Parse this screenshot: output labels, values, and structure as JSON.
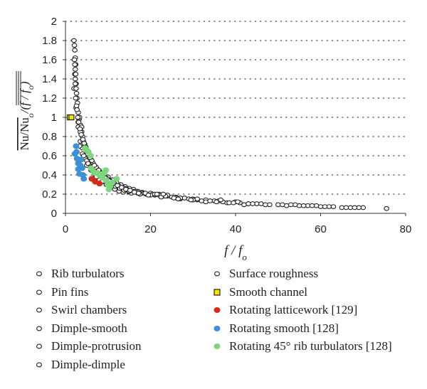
{
  "chart_data": {
    "type": "scatter",
    "xlabel": "f / fo",
    "ylabel": "Nu/Nuo / (f / fo)",
    "xlim": [
      0,
      80
    ],
    "ylim": [
      0,
      2
    ],
    "xticks": [
      "0",
      "20",
      "40",
      "60",
      "80"
    ],
    "yticks": [
      "0",
      "0.2",
      "0.4",
      "0.6",
      "0.8",
      "1",
      "1.2",
      "1.4",
      "1.6",
      "1.8",
      "2"
    ],
    "grid": "dotted horizontal",
    "legend_position": "bottom",
    "series": [
      {
        "name": "Rib turbulators",
        "marker": "open-circle",
        "color": "#222222",
        "points": [
          [
            2,
            1.8
          ],
          [
            2.1,
            1.75
          ],
          [
            2.2,
            1.7
          ],
          [
            2.3,
            1.62
          ],
          [
            2.4,
            1.55
          ],
          [
            2.2,
            1.45
          ],
          [
            2.3,
            1.4
          ],
          [
            2.5,
            1.35
          ],
          [
            2.6,
            1.25
          ],
          [
            2.8,
            1.15
          ],
          [
            3,
            1.05
          ],
          [
            3.2,
            0.98
          ],
          [
            3.5,
            0.92
          ],
          [
            3.8,
            0.85
          ],
          [
            4,
            0.8
          ],
          [
            4.5,
            0.72
          ],
          [
            5,
            0.66
          ],
          [
            5.5,
            0.6
          ],
          [
            6,
            0.56
          ],
          [
            6.5,
            0.52
          ],
          [
            7,
            0.49
          ],
          [
            7.5,
            0.46
          ],
          [
            8,
            0.44
          ],
          [
            9,
            0.41
          ],
          [
            10,
            0.38
          ],
          [
            11,
            0.35
          ],
          [
            12,
            0.32
          ],
          [
            13,
            0.3
          ],
          [
            14,
            0.28
          ],
          [
            15,
            0.26
          ],
          [
            16,
            0.25
          ],
          [
            17,
            0.23
          ],
          [
            18,
            0.22
          ],
          [
            20,
            0.21
          ],
          [
            22,
            0.2
          ],
          [
            24,
            0.18
          ],
          [
            26,
            0.17
          ],
          [
            28,
            0.16
          ],
          [
            30,
            0.15
          ],
          [
            33,
            0.14
          ],
          [
            36,
            0.13
          ],
          [
            40,
            0.12
          ],
          [
            45,
            0.1
          ],
          [
            50,
            0.09
          ],
          [
            55,
            0.08
          ],
          [
            60,
            0.07
          ],
          [
            65,
            0.06
          ],
          [
            70,
            0.06
          ],
          [
            75.5,
            0.05
          ]
        ]
      },
      {
        "name": "Pin fins",
        "marker": "open-circle",
        "color": "#222222",
        "points": [
          [
            3,
            0.9
          ],
          [
            3.5,
            0.75
          ],
          [
            4,
            0.68
          ],
          [
            5,
            0.55
          ],
          [
            6,
            0.48
          ],
          [
            7,
            0.42
          ],
          [
            8,
            0.38
          ],
          [
            9,
            0.35
          ],
          [
            10,
            0.33
          ],
          [
            11,
            0.3
          ],
          [
            12,
            0.28
          ],
          [
            13,
            0.27
          ],
          [
            14,
            0.26
          ],
          [
            15,
            0.24
          ],
          [
            16,
            0.23
          ],
          [
            18,
            0.21
          ],
          [
            19,
            0.2
          ],
          [
            21,
            0.19
          ],
          [
            23,
            0.18
          ],
          [
            25,
            0.17
          ],
          [
            27,
            0.15
          ],
          [
            32,
            0.13
          ],
          [
            38,
            0.11
          ],
          [
            43,
            0.1
          ],
          [
            48,
            0.09
          ],
          [
            52,
            0.08
          ],
          [
            57,
            0.08
          ],
          [
            62,
            0.07
          ],
          [
            67,
            0.06
          ],
          [
            69,
            0.06
          ]
        ]
      },
      {
        "name": "Swirl chambers",
        "marker": "open-circle",
        "color": "#222222",
        "points": [
          [
            4,
            0.62
          ],
          [
            5,
            0.5
          ],
          [
            6,
            0.45
          ],
          [
            7,
            0.4
          ],
          [
            8,
            0.35
          ],
          [
            9,
            0.33
          ],
          [
            10,
            0.3
          ],
          [
            11,
            0.29
          ],
          [
            12,
            0.26
          ],
          [
            13,
            0.25
          ],
          [
            14,
            0.24
          ],
          [
            15,
            0.22
          ],
          [
            17,
            0.21
          ],
          [
            19,
            0.2
          ],
          [
            22,
            0.19
          ],
          [
            24,
            0.19
          ],
          [
            28,
            0.16
          ],
          [
            31,
            0.14
          ],
          [
            35,
            0.13
          ],
          [
            41,
            0.11
          ],
          [
            46,
            0.1
          ],
          [
            54,
            0.09
          ],
          [
            59,
            0.08
          ]
        ]
      },
      {
        "name": "Dimple-smooth",
        "marker": "open-circle",
        "color": "#222222",
        "points": [
          [
            2,
            1.3
          ],
          [
            2.5,
            1.1
          ],
          [
            3,
            0.95
          ],
          [
            3.5,
            0.85
          ],
          [
            4.2,
            0.75
          ],
          [
            5.2,
            0.62
          ],
          [
            6.2,
            0.55
          ],
          [
            7.2,
            0.48
          ],
          [
            8.3,
            0.42
          ],
          [
            9.5,
            0.37
          ],
          [
            10.5,
            0.34
          ],
          [
            11.5,
            0.31
          ],
          [
            12.5,
            0.29
          ],
          [
            13.5,
            0.27
          ],
          [
            14.5,
            0.25
          ],
          [
            16.5,
            0.23
          ],
          [
            18.5,
            0.21
          ],
          [
            20.5,
            0.2
          ],
          [
            26,
            0.16
          ],
          [
            29,
            0.15
          ],
          [
            33,
            0.12
          ],
          [
            37,
            0.12
          ],
          [
            42,
            0.09
          ]
        ]
      },
      {
        "name": "Dimple-protrusion",
        "marker": "open-circle",
        "color": "#222222",
        "points": [
          [
            3.3,
            0.7
          ],
          [
            4.3,
            0.6
          ],
          [
            5.3,
            0.52
          ],
          [
            6.3,
            0.44
          ],
          [
            7.3,
            0.38
          ],
          [
            8.6,
            0.33
          ],
          [
            9.6,
            0.3
          ],
          [
            10.6,
            0.27
          ],
          [
            11.6,
            0.25
          ],
          [
            12.6,
            0.23
          ],
          [
            13.6,
            0.22
          ],
          [
            15.5,
            0.21
          ],
          [
            17.5,
            0.2
          ],
          [
            20,
            0.19
          ],
          [
            22.5,
            0.17
          ],
          [
            25.5,
            0.16
          ],
          [
            30,
            0.14
          ],
          [
            34,
            0.13
          ],
          [
            38.5,
            0.11
          ],
          [
            44,
            0.1
          ],
          [
            51,
            0.09
          ],
          [
            56,
            0.08
          ],
          [
            61,
            0.07
          ],
          [
            66,
            0.06
          ]
        ]
      },
      {
        "name": "Dimple-dimple",
        "marker": "open-circle",
        "color": "#222222",
        "points": [
          [
            2.7,
            1.2
          ],
          [
            3.3,
            1.0
          ],
          [
            3.8,
            0.9
          ],
          [
            4.6,
            0.7
          ],
          [
            5.6,
            0.58
          ],
          [
            6.6,
            0.5
          ],
          [
            7.6,
            0.44
          ],
          [
            8.8,
            0.39
          ],
          [
            9.8,
            0.36
          ],
          [
            10.8,
            0.32
          ],
          [
            11.8,
            0.28
          ],
          [
            12.8,
            0.26
          ],
          [
            13.8,
            0.24
          ],
          [
            15,
            0.23
          ],
          [
            16.8,
            0.22
          ],
          [
            18.8,
            0.21
          ],
          [
            21,
            0.2
          ],
          [
            23.5,
            0.18
          ],
          [
            27,
            0.16
          ],
          [
            31,
            0.15
          ],
          [
            35.5,
            0.12
          ],
          [
            39.5,
            0.11
          ],
          [
            47,
            0.09
          ],
          [
            53,
            0.09
          ],
          [
            58,
            0.08
          ],
          [
            63,
            0.07
          ],
          [
            68,
            0.06
          ]
        ]
      },
      {
        "name": "Surface roughness",
        "marker": "open-circle",
        "color": "#222222",
        "points": [
          [
            2.1,
            1.6
          ],
          [
            2.2,
            1.55
          ],
          [
            2.3,
            1.5
          ],
          [
            2.4,
            1.45
          ],
          [
            2.3,
            1.35
          ],
          [
            2.5,
            1.3
          ],
          [
            2.4,
            1.2
          ],
          [
            2.6,
            1.12
          ],
          [
            2.7,
            1.08
          ],
          [
            2.9,
            1.0
          ],
          [
            3.1,
            0.95
          ],
          [
            3.4,
            0.88
          ],
          [
            3.7,
            0.82
          ],
          [
            4.1,
            0.77
          ],
          [
            4.4,
            0.73
          ],
          [
            4.8,
            0.69
          ],
          [
            5.3,
            0.64
          ],
          [
            5.8,
            0.58
          ],
          [
            6.8,
            0.5
          ],
          [
            7.8,
            0.45
          ],
          [
            8.7,
            0.4
          ],
          [
            9.3,
            0.37
          ],
          [
            10.2,
            0.34
          ],
          [
            11.2,
            0.31
          ],
          [
            12.2,
            0.29
          ],
          [
            13.2,
            0.27
          ],
          [
            14.2,
            0.25
          ],
          [
            15.2,
            0.24
          ],
          [
            16.2,
            0.22
          ],
          [
            17.2,
            0.21
          ],
          [
            19.5,
            0.19
          ],
          [
            21.5,
            0.2
          ],
          [
            23,
            0.2
          ],
          [
            26.5,
            0.15
          ],
          [
            29.5,
            0.14
          ],
          [
            36.5,
            0.14
          ],
          [
            40.5,
            0.12
          ],
          [
            43,
            0.1
          ]
        ]
      },
      {
        "name": "Smooth channel",
        "marker": "square",
        "color": "#f5e400",
        "points": [
          [
            1,
            1
          ],
          [
            1.4,
            1
          ]
        ]
      },
      {
        "name": "Rotating latticework [129]",
        "marker": "filled-circle",
        "color": "#d62a1a",
        "points": [
          [
            6.2,
            0.36
          ],
          [
            7.0,
            0.33
          ],
          [
            8.0,
            0.31
          ]
        ]
      },
      {
        "name": "Rotating smooth [128]",
        "marker": "filled-circle",
        "color": "#3d8fd6",
        "points": [
          [
            2.2,
            0.62
          ],
          [
            2.5,
            0.7
          ],
          [
            2.7,
            0.57
          ],
          [
            3.0,
            0.52
          ],
          [
            3.0,
            0.46
          ],
          [
            3.3,
            0.41
          ],
          [
            3.5,
            0.5
          ],
          [
            3.7,
            0.56
          ],
          [
            3.9,
            0.47
          ],
          [
            4.1,
            0.4
          ],
          [
            4.3,
            0.36
          ],
          [
            2.6,
            0.64
          ]
        ]
      },
      {
        "name": "Rotating 45° rib turbulators [128]",
        "marker": "filled-circle",
        "color": "#7ed67e",
        "points": [
          [
            4.6,
            0.68
          ],
          [
            5.0,
            0.66
          ],
          [
            5.4,
            0.64
          ],
          [
            5.9,
            0.6
          ],
          [
            6.5,
            0.44
          ],
          [
            6.9,
            0.42
          ],
          [
            7.5,
            0.42
          ],
          [
            8.0,
            0.4
          ],
          [
            8.7,
            0.37
          ],
          [
            9.1,
            0.42
          ],
          [
            9.6,
            0.34
          ],
          [
            10.0,
            0.3
          ],
          [
            10.5,
            0.28
          ],
          [
            11.0,
            0.32
          ],
          [
            12.0,
            0.36
          ],
          [
            6.0,
            0.47
          ],
          [
            9.5,
            0.45
          ],
          [
            10.2,
            0.25
          ]
        ]
      }
    ]
  },
  "legend": {
    "items": [
      {
        "label": "Rib turbulators",
        "marker": "open-circle",
        "color": "#222222"
      },
      {
        "label": "Pin fins",
        "marker": "open-circle",
        "color": "#222222"
      },
      {
        "label": "Swirl chambers",
        "marker": "open-circle",
        "color": "#222222"
      },
      {
        "label": "Dimple-smooth",
        "marker": "open-circle",
        "color": "#222222"
      },
      {
        "label": "Dimple-protrusion",
        "marker": "open-circle",
        "color": "#222222"
      },
      {
        "label": "Dimple-dimple",
        "marker": "open-circle",
        "color": "#222222"
      },
      {
        "label": "Surface roughness",
        "marker": "open-circle",
        "color": "#222222"
      },
      {
        "label": "Smooth channel",
        "marker": "square",
        "color": "#f5e400"
      },
      {
        "label": "Rotating latticework [129]",
        "marker": "filled-circle",
        "color": "#d62a1a"
      },
      {
        "label": "Rotating smooth [128]",
        "marker": "filled-circle",
        "color": "#3d8fd6"
      },
      {
        "label": "Rotating 45° rib turbulators [128]",
        "marker": "filled-circle",
        "color": "#7ed67e"
      }
    ]
  }
}
